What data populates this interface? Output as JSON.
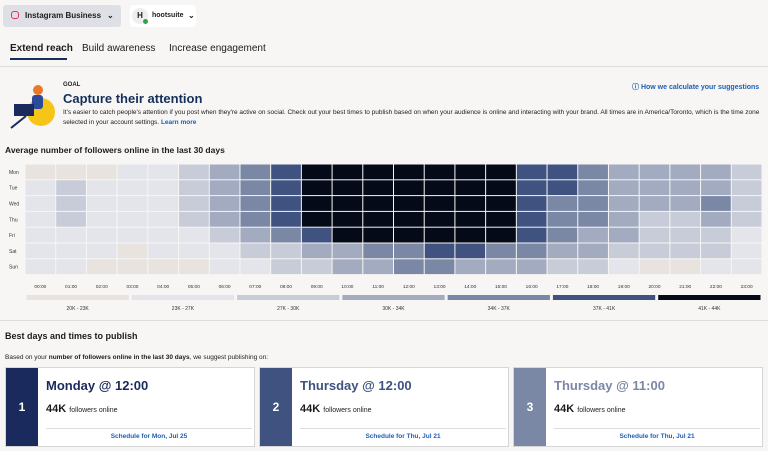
{
  "header": {
    "account": "Instagram Business",
    "org_initial": "H",
    "org": "hootsuite"
  },
  "tabs": [
    "Extend reach",
    "Build awareness",
    "Increase engagement"
  ],
  "goal": {
    "eyebrow": "GOAL",
    "title": "Capture their attention",
    "help_link": "How we calculate your suggestions",
    "description": "It's easier to catch people's attention if you post when they're active on social. Check out your best times to publish based on when your audience is online and interacting with your brand. All times are in America/Toronto, which is the time zone selected in your account settings.",
    "learn_more": "Learn more"
  },
  "heatmap": {
    "title": "Average number of followers online in the last 30 days",
    "days": [
      "Mon",
      "Tue",
      "Wed",
      "Thu",
      "Fri",
      "Sat",
      "Sun"
    ],
    "hours": [
      "00:00",
      "01:00",
      "02:00",
      "03:00",
      "04:00",
      "05:00",
      "06:00",
      "07:00",
      "08:00",
      "09:00",
      "10:00",
      "11:00",
      "12:00",
      "13:00",
      "14:00",
      "15:00",
      "16:00",
      "17:00",
      "18:00",
      "19:00",
      "20:00",
      "21:00",
      "22:00",
      "23:00"
    ],
    "legend": [
      {
        "label": "20K - 23K",
        "color": "#e8e3de"
      },
      {
        "label": "23K - 27K",
        "color": "#e3e5eb"
      },
      {
        "label": "27K - 30K",
        "color": "#c8ccd8"
      },
      {
        "label": "30K - 34K",
        "color": "#a3abc0"
      },
      {
        "label": "34K - 37K",
        "color": "#7a87a5"
      },
      {
        "label": "37K - 41K",
        "color": "#3f5280"
      },
      {
        "label": "41K - 44K",
        "color": "#050a18"
      }
    ],
    "levels": [
      [
        0,
        0,
        0,
        1,
        1,
        2,
        3,
        4,
        5,
        6,
        6,
        6,
        6,
        6,
        6,
        6,
        5,
        5,
        4,
        3,
        3,
        3,
        3,
        2
      ],
      [
        1,
        2,
        1,
        1,
        1,
        2,
        3,
        4,
        5,
        6,
        6,
        6,
        6,
        6,
        6,
        6,
        5,
        5,
        4,
        3,
        3,
        3,
        3,
        2
      ],
      [
        1,
        2,
        1,
        1,
        1,
        2,
        3,
        4,
        5,
        6,
        6,
        6,
        6,
        6,
        6,
        6,
        5,
        4,
        4,
        3,
        3,
        3,
        4,
        2
      ],
      [
        1,
        2,
        1,
        1,
        1,
        2,
        3,
        4,
        5,
        6,
        6,
        6,
        6,
        6,
        6,
        6,
        5,
        4,
        4,
        3,
        2,
        2,
        3,
        2
      ],
      [
        1,
        1,
        1,
        1,
        1,
        1,
        2,
        3,
        4,
        5,
        6,
        6,
        6,
        6,
        6,
        6,
        5,
        4,
        3,
        3,
        2,
        2,
        2,
        1
      ],
      [
        1,
        1,
        1,
        0,
        1,
        1,
        1,
        2,
        2,
        3,
        3,
        4,
        4,
        5,
        5,
        4,
        4,
        3,
        3,
        2,
        2,
        2,
        2,
        1
      ],
      [
        1,
        1,
        0,
        0,
        0,
        0,
        1,
        1,
        2,
        2,
        3,
        3,
        4,
        4,
        3,
        3,
        3,
        2,
        2,
        1,
        0,
        0,
        1,
        1
      ]
    ]
  },
  "best": {
    "title": "Best days and times to publish",
    "intro_before": "Based on your ",
    "intro_bold": "number of followers online in the last 30 days",
    "intro_after": ", we suggest publishing on:",
    "cards": [
      {
        "rank": "1",
        "title": "Monday @ 12:00",
        "count": "44K",
        "count_label": "followers online",
        "action": "Schedule for Mon, Jul 25",
        "color": "#1b2a5c"
      },
      {
        "rank": "2",
        "title": "Thursday @ 12:00",
        "count": "44K",
        "count_label": "followers online",
        "action": "Schedule for Thu, Jul 21",
        "color": "#3f5280"
      },
      {
        "rank": "3",
        "title": "Thursday @ 11:00",
        "count": "44K",
        "count_label": "followers online",
        "action": "Schedule for Thu, Jul 21",
        "color": "#7a87a5"
      }
    ]
  }
}
